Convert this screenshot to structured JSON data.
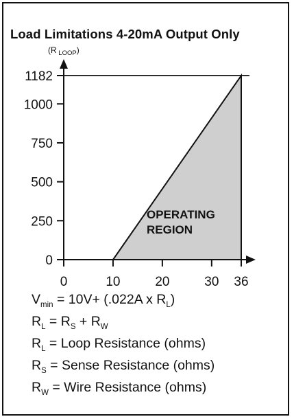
{
  "title": "Load Limitations 4-20mA Output Only",
  "chart_data": {
    "type": "area",
    "title": "Load Limitations 4-20mA Output Only",
    "ylabel": {
      "main": "(R",
      "sub": "LOOP",
      "close": ")"
    },
    "xlabel": "",
    "x_ticks": [
      0,
      10,
      20,
      30,
      36
    ],
    "y_ticks": [
      0,
      250,
      500,
      750,
      1000,
      1182
    ],
    "xlim": [
      0,
      36
    ],
    "ylim": [
      0,
      1182
    ],
    "region_label": [
      "OPERATING",
      "REGION"
    ],
    "region_color": "#cfcfcf",
    "series": [
      {
        "x": [
          10,
          36
        ],
        "y": [
          0,
          1182
        ]
      }
    ]
  },
  "formulas": [
    {
      "parts": [
        {
          "t": "V"
        },
        {
          "s": "min"
        },
        {
          "t": " = 10V+ (.022A x R"
        },
        {
          "s": "L"
        },
        {
          "t": ")"
        }
      ]
    },
    {
      "parts": [
        {
          "t": "R"
        },
        {
          "s": "L"
        },
        {
          "t": " = R"
        },
        {
          "s": "S"
        },
        {
          "t": " + R"
        },
        {
          "s": "W"
        }
      ]
    },
    {
      "parts": [
        {
          "t": "R"
        },
        {
          "s": "L"
        },
        {
          "t": " = Loop Resistance (ohms)"
        }
      ]
    },
    {
      "parts": [
        {
          "t": "R"
        },
        {
          "s": "S"
        },
        {
          "t": " = Sense Resistance (ohms)"
        }
      ]
    },
    {
      "parts": [
        {
          "t": "R"
        },
        {
          "s": "W"
        },
        {
          "t": " = Wire Resistance (ohms)"
        }
      ]
    }
  ]
}
